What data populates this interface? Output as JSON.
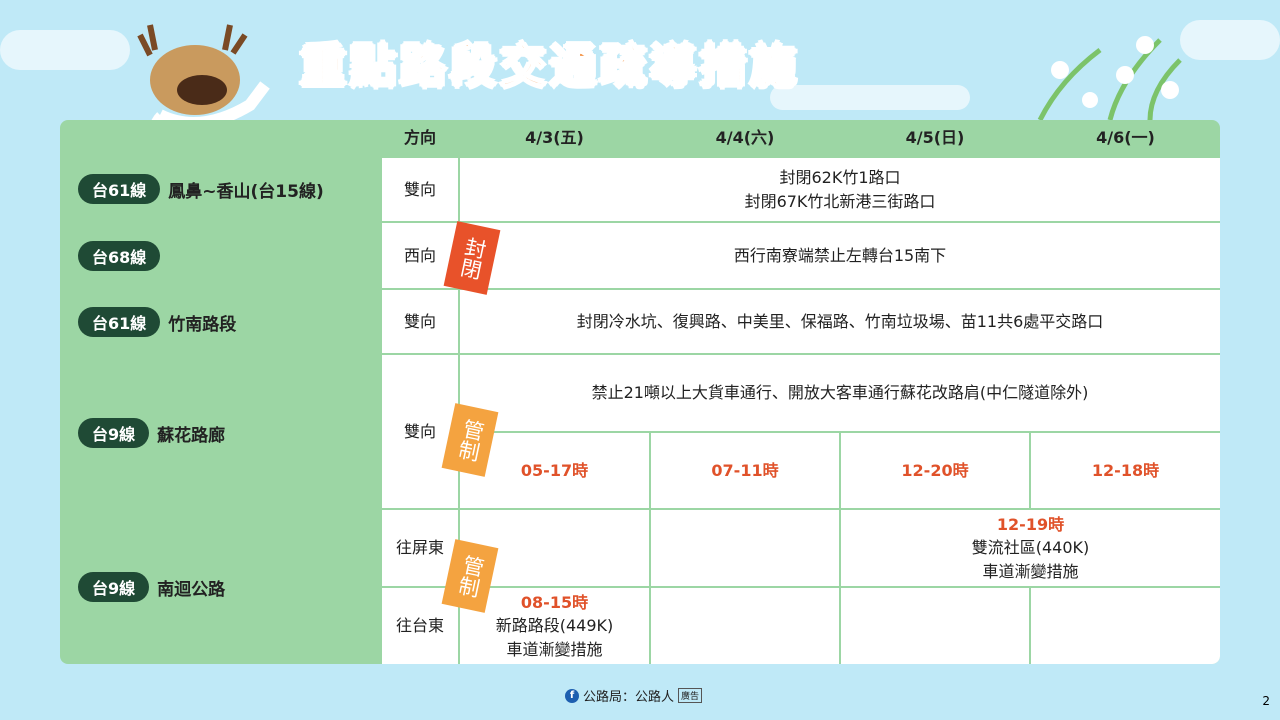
{
  "title": "重點路段交通疏導措施",
  "header": {
    "direction": "方向",
    "dates": [
      "4/3(五)",
      "4/4(六)",
      "4/5(日)",
      "4/6(一)"
    ]
  },
  "rows": [
    {
      "route": "台61線",
      "section": "鳳鼻~香山(台15線)",
      "direction": "雙向",
      "measure_lines": [
        "封閉62K竹1路口",
        "封閉67K竹北新港三街路口"
      ]
    },
    {
      "route": "台68線",
      "section": "",
      "direction": "西向",
      "measure": "西行南寮端禁止左轉台15南下"
    },
    {
      "route": "台61線",
      "section": "竹南路段",
      "direction": "雙向",
      "measure": "封閉冷水坑、復興路、中美里、保福路、竹南垃圾場、苗11共6處平交路口"
    },
    {
      "route": "台9線",
      "section": "蘇花路廊",
      "direction": "雙向",
      "measure": "禁止21噸以上大貨車通行、開放大客車通行蘇花改路肩(中仁隧道除外)",
      "times": [
        "05-17時",
        "07-11時",
        "12-20時",
        "12-18時"
      ]
    },
    {
      "route": "台9線",
      "section": "南迴公路",
      "directions": [
        "往屏東",
        "往台東"
      ],
      "pingtung": {
        "time": "12-19時",
        "lines": [
          "雙流社區(440K)",
          "車道漸變措施"
        ]
      },
      "taitung": {
        "time": "08-15時",
        "lines": [
          "新路路段(449K)",
          "車道漸變措施"
        ]
      }
    }
  ],
  "stamps": {
    "closed": "封閉",
    "control": "管制"
  },
  "footer": {
    "source": "公路局：公路人",
    "ad": "廣告",
    "page": "2"
  },
  "colors": {
    "title": "#f07a1a",
    "table_green": "#9cd6a4",
    "pill": "#1f4a35",
    "time": "#e0522a",
    "stamp_closed": "#e8522a",
    "stamp_control": "#f4a340"
  }
}
